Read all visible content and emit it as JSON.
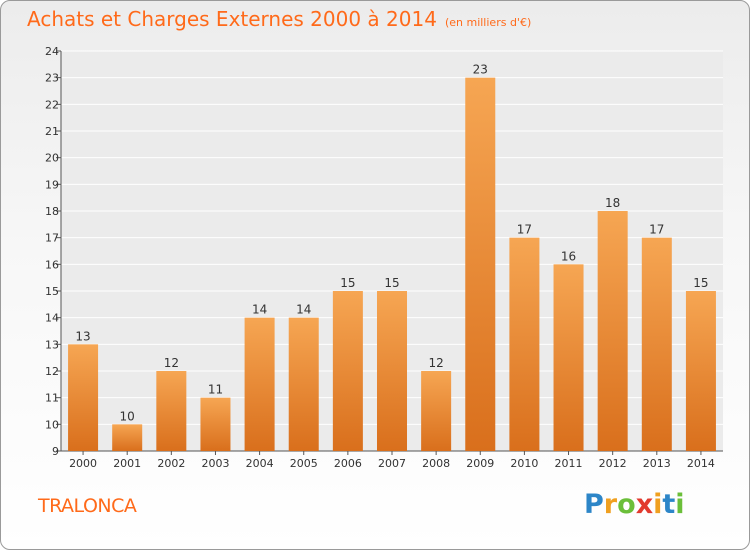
{
  "title": "Achats et Charges Externes 2000 à 2014",
  "unit": "(en milliers d'€)",
  "commune": "TRALONCA",
  "logo": {
    "letters": [
      "P",
      "r",
      "o",
      "x",
      "i",
      "t",
      "i"
    ],
    "colors": [
      "#2d86c8",
      "#f0a020",
      "#6bbf3a",
      "#e23a2e",
      "#f0a020",
      "#2d86c8",
      "#6bbf3a"
    ]
  },
  "colors": {
    "bar_top": "#f6a653",
    "bar_bottom": "#d96f1c",
    "accent": "#ff6a1a"
  },
  "chart_data": {
    "type": "bar",
    "title": "Achats et Charges Externes 2000 à 2014",
    "subtitle": "(en milliers d'€)",
    "categories": [
      "2000",
      "2001",
      "2002",
      "2003",
      "2004",
      "2005",
      "2006",
      "2007",
      "2008",
      "2009",
      "2010",
      "2011",
      "2012",
      "2013",
      "2014"
    ],
    "values": [
      13,
      10,
      12,
      11,
      14,
      14,
      15,
      15,
      12,
      23,
      17,
      16,
      18,
      17,
      15
    ],
    "ylim": [
      9,
      24
    ],
    "yticks": [
      9,
      10,
      11,
      12,
      13,
      14,
      15,
      16,
      17,
      18,
      19,
      20,
      21,
      22,
      23,
      24
    ],
    "grid": true,
    "legend": "none"
  }
}
